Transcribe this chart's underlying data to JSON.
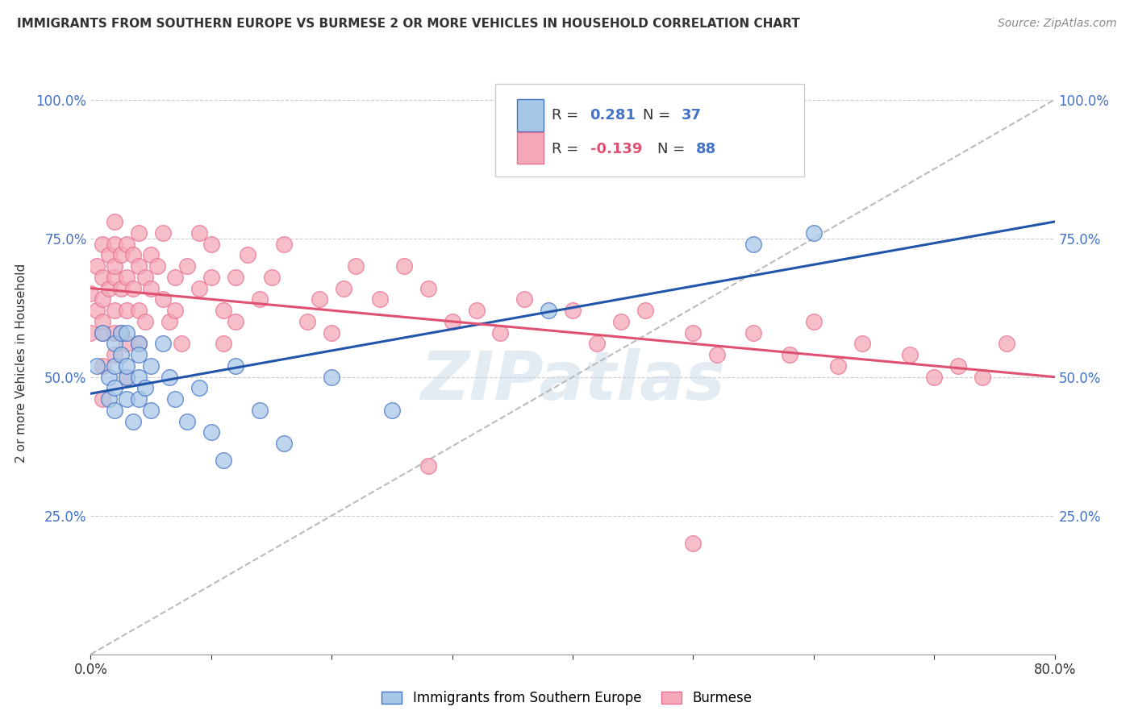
{
  "title": "IMMIGRANTS FROM SOUTHERN EUROPE VS BURMESE 2 OR MORE VEHICLES IN HOUSEHOLD CORRELATION CHART",
  "source": "Source: ZipAtlas.com",
  "ylabel": "2 or more Vehicles in Household",
  "xlim": [
    0.0,
    0.8
  ],
  "ylim": [
    0.0,
    1.05
  ],
  "xticks": [
    0.0,
    0.1,
    0.2,
    0.3,
    0.4,
    0.5,
    0.6,
    0.7,
    0.8
  ],
  "ytick_positions": [
    0.0,
    0.25,
    0.5,
    0.75,
    1.0
  ],
  "yticklabels_left": [
    "",
    "25.0%",
    "50.0%",
    "75.0%",
    "100.0%"
  ],
  "yticklabels_right": [
    "",
    "25.0%",
    "50.0%",
    "75.0%",
    "100.0%"
  ],
  "blue_color": "#A8C8E8",
  "pink_color": "#F4A8B8",
  "blue_edge_color": "#4472C4",
  "pink_edge_color": "#E87090",
  "blue_line_color": "#2255AA",
  "pink_line_color": "#E05070",
  "dashed_line_color": "#BBBBBB",
  "watermark": "ZIPatlas",
  "legend_label_blue": "Immigrants from Southern Europe",
  "legend_label_pink": "Burmese",
  "blue_line_x0": 0.0,
  "blue_line_y0": 0.47,
  "blue_line_x1": 0.8,
  "blue_line_y1": 0.78,
  "pink_line_x0": 0.0,
  "pink_line_y0": 0.66,
  "pink_line_x1": 0.8,
  "pink_line_y1": 0.5,
  "blue_scatter_x": [
    0.005,
    0.01,
    0.015,
    0.015,
    0.02,
    0.02,
    0.02,
    0.02,
    0.025,
    0.025,
    0.03,
    0.03,
    0.03,
    0.03,
    0.035,
    0.04,
    0.04,
    0.04,
    0.04,
    0.045,
    0.05,
    0.05,
    0.06,
    0.065,
    0.07,
    0.08,
    0.09,
    0.1,
    0.11,
    0.12,
    0.14,
    0.16,
    0.2,
    0.25,
    0.38,
    0.55,
    0.6
  ],
  "blue_scatter_y": [
    0.52,
    0.58,
    0.46,
    0.5,
    0.56,
    0.52,
    0.48,
    0.44,
    0.54,
    0.58,
    0.5,
    0.46,
    0.52,
    0.58,
    0.42,
    0.56,
    0.5,
    0.46,
    0.54,
    0.48,
    0.52,
    0.44,
    0.56,
    0.5,
    0.46,
    0.42,
    0.48,
    0.4,
    0.35,
    0.52,
    0.44,
    0.38,
    0.5,
    0.44,
    0.62,
    0.74,
    0.76
  ],
  "pink_scatter_x": [
    0.0,
    0.0,
    0.005,
    0.005,
    0.01,
    0.01,
    0.01,
    0.01,
    0.01,
    0.01,
    0.01,
    0.015,
    0.015,
    0.02,
    0.02,
    0.02,
    0.02,
    0.02,
    0.02,
    0.02,
    0.025,
    0.025,
    0.025,
    0.03,
    0.03,
    0.03,
    0.03,
    0.03,
    0.035,
    0.035,
    0.04,
    0.04,
    0.04,
    0.04,
    0.045,
    0.045,
    0.05,
    0.05,
    0.055,
    0.06,
    0.06,
    0.065,
    0.07,
    0.07,
    0.075,
    0.08,
    0.09,
    0.09,
    0.1,
    0.1,
    0.11,
    0.11,
    0.12,
    0.12,
    0.13,
    0.14,
    0.15,
    0.16,
    0.18,
    0.19,
    0.2,
    0.21,
    0.22,
    0.24,
    0.26,
    0.28,
    0.3,
    0.32,
    0.34,
    0.36,
    0.4,
    0.42,
    0.44,
    0.46,
    0.5,
    0.52,
    0.55,
    0.58,
    0.6,
    0.62,
    0.64,
    0.68,
    0.7,
    0.72,
    0.74,
    0.76,
    0.28,
    0.5
  ],
  "pink_scatter_y": [
    0.65,
    0.58,
    0.7,
    0.62,
    0.68,
    0.74,
    0.58,
    0.52,
    0.64,
    0.6,
    0.46,
    0.72,
    0.66,
    0.68,
    0.74,
    0.62,
    0.58,
    0.54,
    0.78,
    0.7,
    0.66,
    0.72,
    0.58,
    0.74,
    0.68,
    0.62,
    0.56,
    0.5,
    0.72,
    0.66,
    0.7,
    0.76,
    0.62,
    0.56,
    0.68,
    0.6,
    0.72,
    0.66,
    0.7,
    0.76,
    0.64,
    0.6,
    0.68,
    0.62,
    0.56,
    0.7,
    0.76,
    0.66,
    0.74,
    0.68,
    0.62,
    0.56,
    0.68,
    0.6,
    0.72,
    0.64,
    0.68,
    0.74,
    0.6,
    0.64,
    0.58,
    0.66,
    0.7,
    0.64,
    0.7,
    0.66,
    0.6,
    0.62,
    0.58,
    0.64,
    0.62,
    0.56,
    0.6,
    0.62,
    0.58,
    0.54,
    0.58,
    0.54,
    0.6,
    0.52,
    0.56,
    0.54,
    0.5,
    0.52,
    0.5,
    0.56,
    0.34,
    0.2
  ]
}
